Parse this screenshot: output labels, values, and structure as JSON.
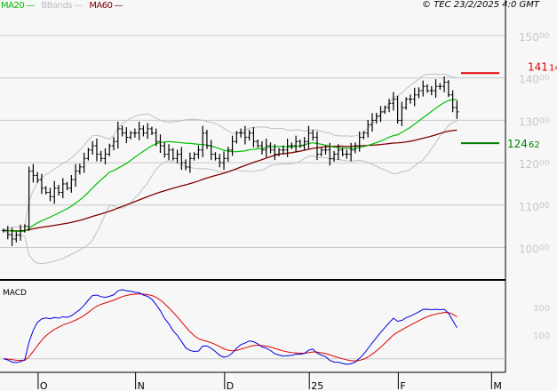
{
  "chart_data": {
    "type": "ohlc",
    "title": "",
    "copyright": "© TEC 23/2/2025 4:0 GMT",
    "legend": [
      {
        "label": "MA20",
        "color": "#00c000"
      },
      {
        "label": "BBands",
        "color": "#c0c0c0"
      },
      {
        "label": "MA60",
        "color": "#800000"
      }
    ],
    "y_ticks": [
      {
        "int": "150",
        "dec": "00",
        "v": 150
      },
      {
        "int": "140",
        "dec": "00",
        "v": 140
      },
      {
        "int": "130",
        "dec": "00",
        "v": 130
      },
      {
        "int": "120",
        "dec": "00",
        "v": 120
      },
      {
        "int": "110",
        "dec": "00",
        "v": 110
      },
      {
        "int": "100",
        "dec": "00",
        "v": 100
      }
    ],
    "ylim": [
      97,
      156
    ],
    "x_ticks": [
      {
        "label": "O",
        "bar": 9
      },
      {
        "label": "N",
        "bar": 32
      },
      {
        "label": "D",
        "bar": 53
      },
      {
        "label": "25",
        "bar": 73
      },
      {
        "label": "F",
        "bar": 94
      },
      {
        "label": "M",
        "bar": 116
      }
    ],
    "levels": [
      {
        "value": 141.14,
        "int": "141",
        "dec": "14",
        "color": "#e00000"
      },
      {
        "value": 124.62,
        "int": "124",
        "dec": "62",
        "color": "#008000"
      }
    ],
    "closes": [
      104,
      103,
      102,
      103,
      104,
      105,
      118,
      117,
      116,
      114,
      113,
      112,
      114,
      113,
      115,
      114,
      116,
      118,
      119,
      121,
      123,
      124,
      122,
      121,
      122,
      124,
      125,
      128,
      127,
      126,
      127,
      127,
      128,
      127,
      128,
      127,
      125,
      124,
      122,
      123,
      121,
      122,
      120,
      119,
      121,
      122,
      123,
      127,
      124,
      122,
      121,
      120,
      121,
      123,
      125,
      127,
      127,
      126,
      127,
      125,
      124,
      123,
      124,
      123,
      122,
      123,
      123,
      124,
      124,
      125,
      124,
      125,
      127,
      126,
      122,
      123,
      123,
      121,
      122,
      123,
      122,
      122,
      123,
      124,
      126,
      127,
      129,
      130,
      131,
      132,
      133,
      134,
      135,
      130,
      133,
      135,
      135,
      136,
      137,
      138,
      137,
      137,
      138,
      138,
      139,
      136,
      133,
      132
    ],
    "macd": {
      "label": "MACD",
      "y_ticks": [
        {
          "label": "300"
        },
        {
          "label": "100"
        }
      ],
      "macd_color": "#0000e0",
      "signal_color": "#e00000"
    }
  }
}
